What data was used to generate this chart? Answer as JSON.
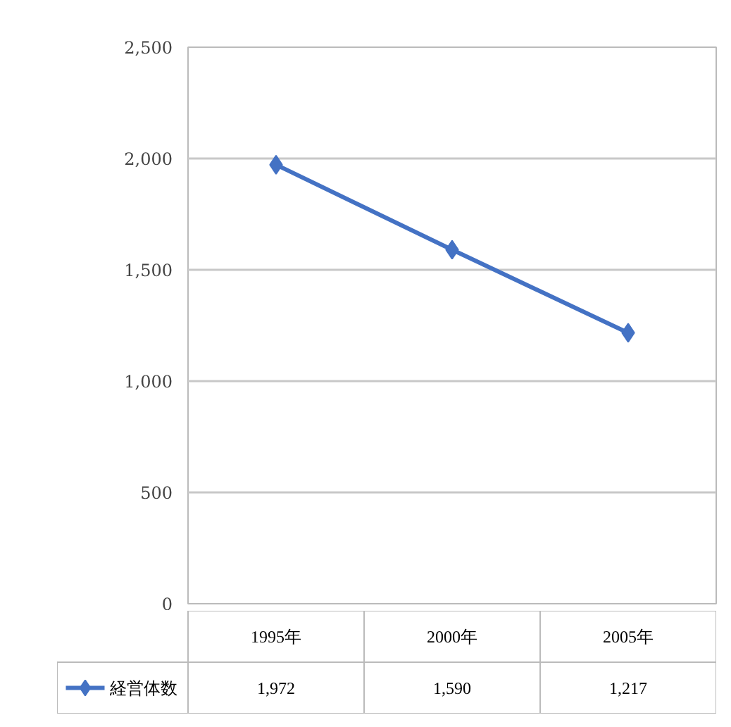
{
  "chart_data": {
    "type": "line",
    "categories": [
      "1995年",
      "2000年",
      "2005年"
    ],
    "series": [
      {
        "name": "経営体数",
        "color": "#4472c4",
        "values": [
          1972,
          1590,
          1217
        ],
        "value_labels": [
          "1,972",
          "1,590",
          "1,217"
        ]
      }
    ],
    "ylim": [
      0,
      2500
    ],
    "yticks": [
      0,
      {
        "value": 500,
        "label": "500"
      },
      {
        "value": 1000,
        "label": "1,000"
      },
      {
        "value": 1500,
        "label": "1,500"
      },
      {
        "value": 2000,
        "label": "2,000"
      },
      {
        "value": 2500,
        "label": "2,500"
      }
    ],
    "grid": "y",
    "marker": "diamond",
    "line_style": "solid",
    "legend": "bottom left"
  }
}
